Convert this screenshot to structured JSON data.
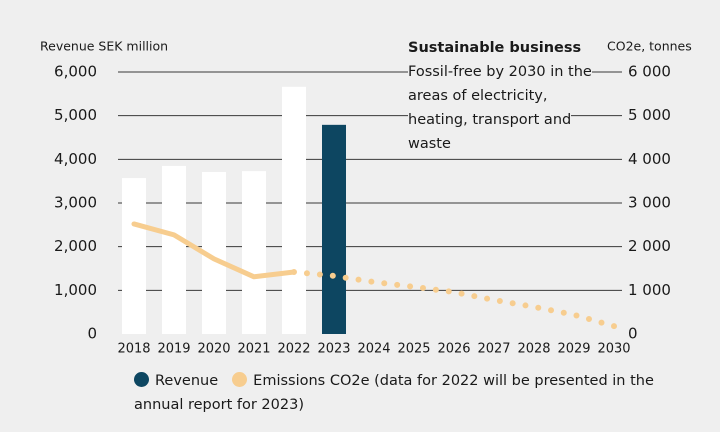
{
  "chart_data": {
    "type": "bar-line",
    "ylabel": "Revenue SEK million",
    "y2label": "CO2e, tonnes",
    "annotation_title": "Sustainable business",
    "annotation": "Fossil-free by 2030 in the areas of electricity, heating, transport and waste",
    "categories": [
      "2018",
      "2019",
      "2020",
      "2021",
      "2022",
      "2023",
      "2024",
      "2025",
      "2026",
      "2027",
      "2028",
      "2029",
      "2030"
    ],
    "series": [
      {
        "name": "Revenue",
        "type": "bar",
        "color": "#ffffff",
        "colors": [
          "#ffffff",
          "#ffffff",
          "#ffffff",
          "#ffffff",
          "#ffffff",
          "#0d4661",
          null,
          null,
          null,
          null,
          null,
          null,
          null
        ],
        "legend_color": "#0d4661",
        "values": [
          3570,
          3850,
          3710,
          3730,
          5660,
          4790,
          null,
          null,
          null,
          null,
          null,
          null,
          null
        ]
      },
      {
        "name": "Emissions CO2e (data for 2022 will be presented in the annual report for 2023)",
        "type": "line",
        "axis": "y2",
        "color": "#f7cd8f",
        "projected_from": "2022",
        "values": [
          2520,
          2270,
          1720,
          1310,
          1420,
          1330,
          1190,
          1080,
          960,
          780,
          620,
          440,
          180
        ]
      }
    ],
    "ylim": [
      0,
      6000
    ],
    "yticks": [
      0,
      {
        "value": 1000,
        "label": "1,000"
      },
      {
        "value": 2000,
        "label": "2,000"
      },
      {
        "value": 3000,
        "label": "3,000"
      },
      {
        "value": 4000,
        "label": "4,000"
      },
      {
        "value": 5000,
        "label": "5,000"
      },
      {
        "value": 6000,
        "label": "6,000"
      }
    ],
    "y2lim": [
      0,
      6000
    ],
    "y2ticks": [
      0,
      {
        "value": 1000,
        "label": "1 000"
      },
      {
        "value": 2000,
        "label": "2 000"
      },
      {
        "value": 3000,
        "label": "3 000"
      },
      {
        "value": 4000,
        "label": "4 000"
      },
      {
        "value": 5000,
        "label": "5 000"
      },
      {
        "value": 6000,
        "label": "6 000"
      }
    ],
    "grid": true
  }
}
